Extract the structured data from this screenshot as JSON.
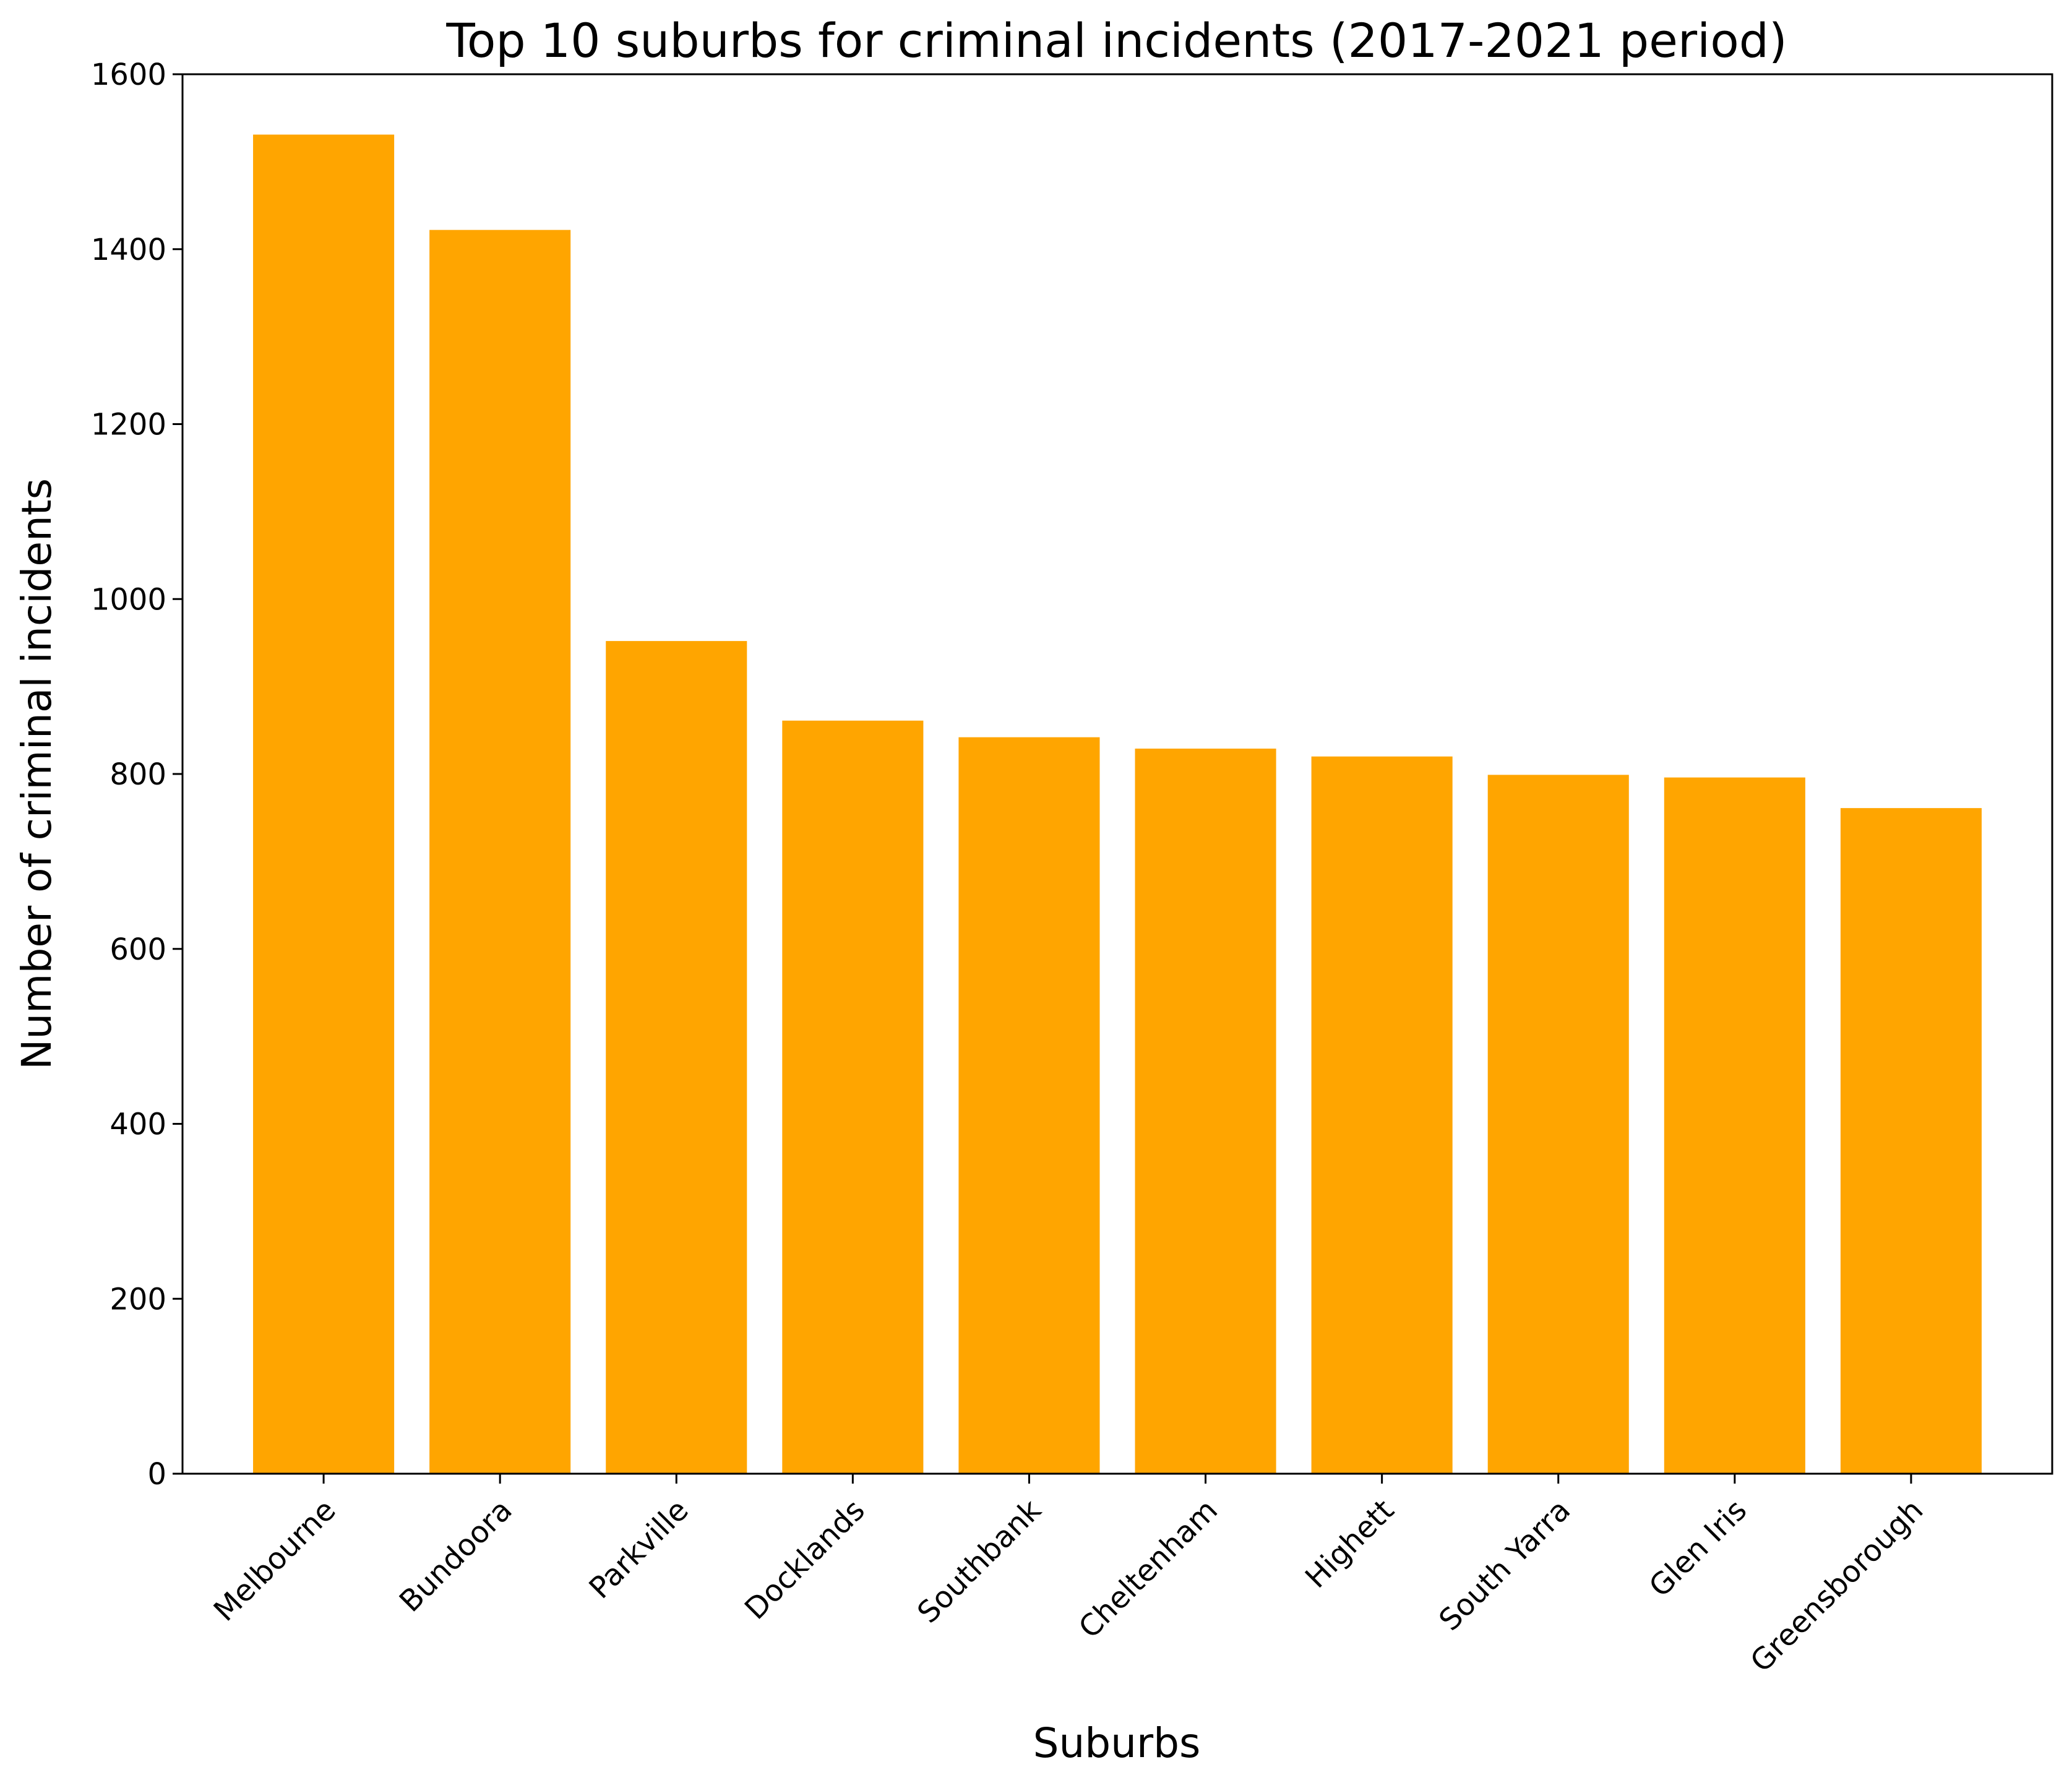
{
  "chart_data": {
    "type": "bar",
    "title": "Top 10 suburbs for criminal incidents (2017-2021 period)",
    "xlabel": "Suburbs",
    "ylabel": "Number of criminal incidents",
    "categories": [
      "Melbourne",
      "Bundoora",
      "Parkville",
      "Docklands",
      "Southbank",
      "Cheltenham",
      "Highett",
      "South Yarra",
      "Glen Iris",
      "Greensborough"
    ],
    "values": [
      1531,
      1422,
      952,
      861,
      842,
      829,
      820,
      799,
      796,
      761
    ],
    "ylim": [
      0,
      1600
    ],
    "yticks": [
      0,
      200,
      400,
      600,
      800,
      1000,
      1200,
      1400,
      1600
    ],
    "bar_color": "#ffa500",
    "grid": false,
    "legend": "none"
  }
}
